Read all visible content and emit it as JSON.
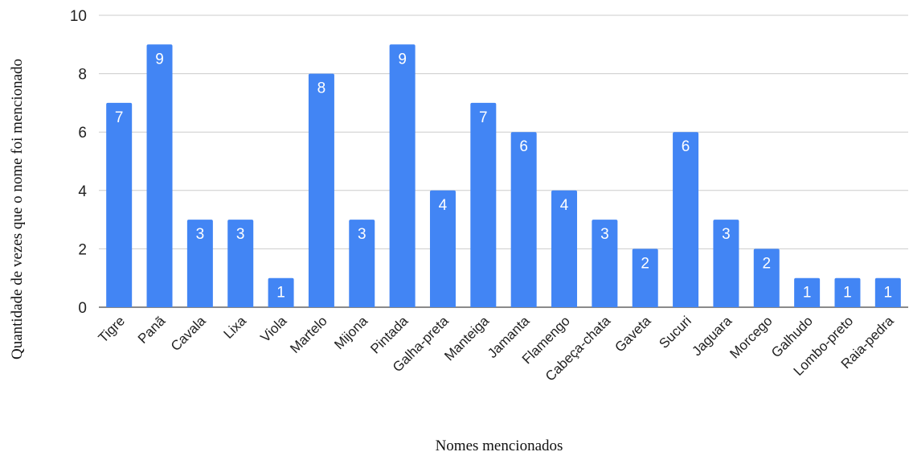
{
  "chart_data": {
    "type": "bar",
    "title": "",
    "xlabel": "Nomes mencionados",
    "ylabel": "Quantidade de vezes que o nome foi mencionado",
    "ylim": [
      0,
      10
    ],
    "yticks": [
      0,
      2,
      4,
      6,
      8,
      10
    ],
    "grid": true,
    "legend": "none",
    "bar_color": "#4285f4",
    "categories": [
      "Tigre",
      "Panã",
      "Cavala",
      "Lixa",
      "Viola",
      "Martelo",
      "Mijona",
      "Pintada",
      "Galha-preta",
      "Manteiga",
      "Jamanta",
      "Flamengo",
      "Cabeça-chata",
      "Gaveta",
      "Sucuri",
      "Jaguara",
      "Morcego",
      "Galhudo",
      "Lombo-preto",
      "Raia-pedra"
    ],
    "values": [
      7,
      9,
      3,
      3,
      1,
      8,
      3,
      9,
      4,
      7,
      6,
      4,
      3,
      2,
      6,
      3,
      2,
      1,
      1,
      1
    ]
  }
}
